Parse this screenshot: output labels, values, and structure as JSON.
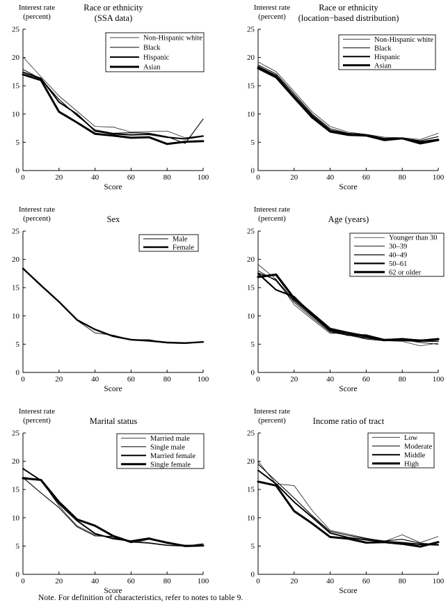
{
  "figure_note": "Note. For definition of characteristics, refer to notes to table 9.",
  "axes_common": {
    "ylabel_lines": [
      "Interest rate",
      "(percent)"
    ],
    "xlabel": "Score",
    "ylim": [
      0,
      25
    ],
    "xlim": [
      0,
      100
    ],
    "yticks": [
      0,
      5,
      10,
      15,
      20,
      25
    ],
    "xticks": [
      0,
      20,
      40,
      60,
      80,
      100
    ],
    "grid": false,
    "legend_position": "top-right",
    "line_color": "#000000"
  },
  "chart_data": [
    {
      "type": "line",
      "title_lines": [
        "Race or ethnicity",
        "(SSA data)"
      ],
      "xlabel": "Score",
      "ylabel": "Interest rate (percent)",
      "x": [
        0,
        10,
        20,
        30,
        40,
        50,
        60,
        70,
        80,
        90,
        100
      ],
      "series": [
        {
          "name": "Non-Hispanic white",
          "line_width": 0.7,
          "values": [
            20.1,
            16.6,
            13.2,
            10.5,
            7.8,
            7.7,
            6.8,
            6.9,
            7.0,
            5.8,
            6.2
          ]
        },
        {
          "name": "Black",
          "line_width": 1.1,
          "values": [
            17.9,
            16.2,
            12.6,
            9.7,
            7.2,
            6.6,
            6.7,
            6.6,
            6.0,
            4.8,
            9.1
          ]
        },
        {
          "name": "Hispanic",
          "line_width": 2.0,
          "values": [
            17.4,
            16.3,
            12.1,
            10.0,
            7.0,
            6.5,
            6.3,
            6.4,
            5.9,
            5.6,
            6.1
          ]
        },
        {
          "name": "Asian",
          "line_width": 3.0,
          "values": [
            17.0,
            16.0,
            10.4,
            8.5,
            6.5,
            6.2,
            5.8,
            5.9,
            4.7,
            5.1,
            5.2
          ]
        }
      ]
    },
    {
      "type": "line",
      "title_lines": [
        "Race or ethnicity",
        "(location−based distribution)"
      ],
      "xlabel": "Score",
      "ylabel": "Interest rate (percent)",
      "x": [
        0,
        10,
        20,
        30,
        40,
        50,
        60,
        70,
        80,
        90,
        100
      ],
      "series": [
        {
          "name": "Non-Hispanic white",
          "line_width": 0.7,
          "values": [
            19.2,
            17.5,
            14.0,
            10.4,
            7.8,
            6.8,
            6.4,
            5.9,
            5.8,
            5.5,
            6.6
          ]
        },
        {
          "name": "Black",
          "line_width": 1.1,
          "values": [
            18.7,
            17.1,
            13.6,
            10.0,
            7.4,
            6.6,
            6.3,
            5.7,
            5.7,
            5.3,
            6.0
          ]
        },
        {
          "name": "Hispanic",
          "line_width": 2.0,
          "values": [
            18.4,
            16.8,
            13.2,
            9.7,
            7.1,
            6.5,
            6.3,
            5.6,
            5.7,
            5.1,
            5.5
          ]
        },
        {
          "name": "Asian",
          "line_width": 3.0,
          "values": [
            18.1,
            16.5,
            12.9,
            9.4,
            6.9,
            6.3,
            6.2,
            5.4,
            5.7,
            4.8,
            5.4
          ]
        }
      ]
    },
    {
      "type": "line",
      "title_lines": [
        "Sex"
      ],
      "xlabel": "Score",
      "ylabel": "Interest rate (percent)",
      "x": [
        0,
        10,
        20,
        30,
        40,
        50,
        60,
        70,
        80,
        90,
        100
      ],
      "series": [
        {
          "name": "Male",
          "line_width": 0.9,
          "values": [
            18.5,
            15.5,
            12.6,
            9.2,
            7.0,
            6.6,
            5.8,
            5.8,
            5.2,
            5.1,
            5.4
          ]
        },
        {
          "name": "Female",
          "line_width": 2.4,
          "values": [
            18.4,
            15.4,
            12.5,
            9.3,
            7.6,
            6.4,
            5.8,
            5.6,
            5.3,
            5.2,
            5.4
          ]
        }
      ]
    },
    {
      "type": "line",
      "title_lines": [
        "Age (years)"
      ],
      "xlabel": "Score",
      "ylabel": "Interest rate (percent)",
      "x": [
        0,
        10,
        20,
        30,
        40,
        50,
        60,
        70,
        80,
        90,
        100
      ],
      "series": [
        {
          "name": "Younger than 30",
          "line_width": 0.7,
          "values": [
            19.1,
            16.5,
            12.0,
            9.4,
            6.9,
            7.0,
            5.9,
            5.6,
            5.5,
            4.7,
            5.2
          ]
        },
        {
          "name": "30–39",
          "line_width": 0.9,
          "values": [
            18.0,
            16.2,
            12.4,
            9.7,
            7.1,
            6.6,
            5.9,
            5.6,
            5.8,
            5.3,
            5.0
          ]
        },
        {
          "name": "40–49",
          "line_width": 1.3,
          "values": [
            17.6,
            16.4,
            12.7,
            10.0,
            7.3,
            6.7,
            6.1,
            5.7,
            5.6,
            5.5,
            5.5
          ]
        },
        {
          "name": "50–61",
          "line_width": 2.2,
          "values": [
            17.5,
            14.6,
            13.4,
            10.2,
            7.4,
            6.6,
            6.6,
            5.8,
            5.9,
            5.7,
            5.8
          ]
        },
        {
          "name": "62 or older",
          "line_width": 3.2,
          "values": [
            16.9,
            17.3,
            13.1,
            10.4,
            7.7,
            7.0,
            6.4,
            5.7,
            5.9,
            5.6,
            5.9
          ]
        }
      ]
    },
    {
      "type": "line",
      "title_lines": [
        "Marital status"
      ],
      "xlabel": "Score",
      "ylabel": "Interest rate (percent)",
      "x": [
        0,
        10,
        20,
        30,
        40,
        50,
        60,
        70,
        80,
        90,
        100
      ],
      "series": [
        {
          "name": "Married male",
          "line_width": 0.7,
          "values": [
            17.2,
            16.7,
            12.1,
            8.6,
            7.0,
            6.5,
            5.9,
            5.6,
            5.2,
            5.0,
            5.2
          ]
        },
        {
          "name": "Single male",
          "line_width": 1.1,
          "values": [
            17.1,
            14.4,
            11.8,
            8.4,
            6.8,
            6.7,
            5.7,
            5.5,
            5.1,
            5.0,
            5.4
          ]
        },
        {
          "name": "Married female",
          "line_width": 2.0,
          "values": [
            18.7,
            16.6,
            12.5,
            9.5,
            7.2,
            6.3,
            5.9,
            6.4,
            5.5,
            5.1,
            5.1
          ]
        },
        {
          "name": "Single female",
          "line_width": 3.0,
          "values": [
            17.0,
            16.7,
            12.8,
            9.7,
            8.6,
            6.8,
            5.7,
            6.3,
            5.6,
            5.0,
            5.1
          ]
        }
      ]
    },
    {
      "type": "line",
      "title_lines": [
        "Income ratio of tract"
      ],
      "xlabel": "Score",
      "ylabel": "Interest rate (percent)",
      "x": [
        0,
        10,
        20,
        30,
        40,
        50,
        60,
        70,
        80,
        90,
        100
      ],
      "series": [
        {
          "name": "Low",
          "line_width": 0.7,
          "values": [
            20.0,
            16.0,
            15.7,
            11.3,
            7.8,
            7.1,
            6.4,
            5.8,
            7.0,
            5.6,
            6.7
          ]
        },
        {
          "name": "Moderate",
          "line_width": 1.1,
          "values": [
            19.5,
            16.5,
            13.5,
            10.4,
            7.6,
            6.9,
            6.3,
            5.9,
            6.2,
            5.5,
            5.3
          ]
        },
        {
          "name": "Middle",
          "line_width": 2.0,
          "values": [
            18.4,
            16.0,
            12.8,
            10.1,
            7.3,
            6.5,
            6.1,
            5.8,
            5.6,
            5.3,
            5.2
          ]
        },
        {
          "name": "High",
          "line_width": 3.0,
          "values": [
            16.4,
            15.7,
            11.2,
            9.0,
            6.6,
            6.3,
            5.6,
            5.7,
            5.4,
            4.9,
            5.7
          ]
        }
      ]
    }
  ]
}
